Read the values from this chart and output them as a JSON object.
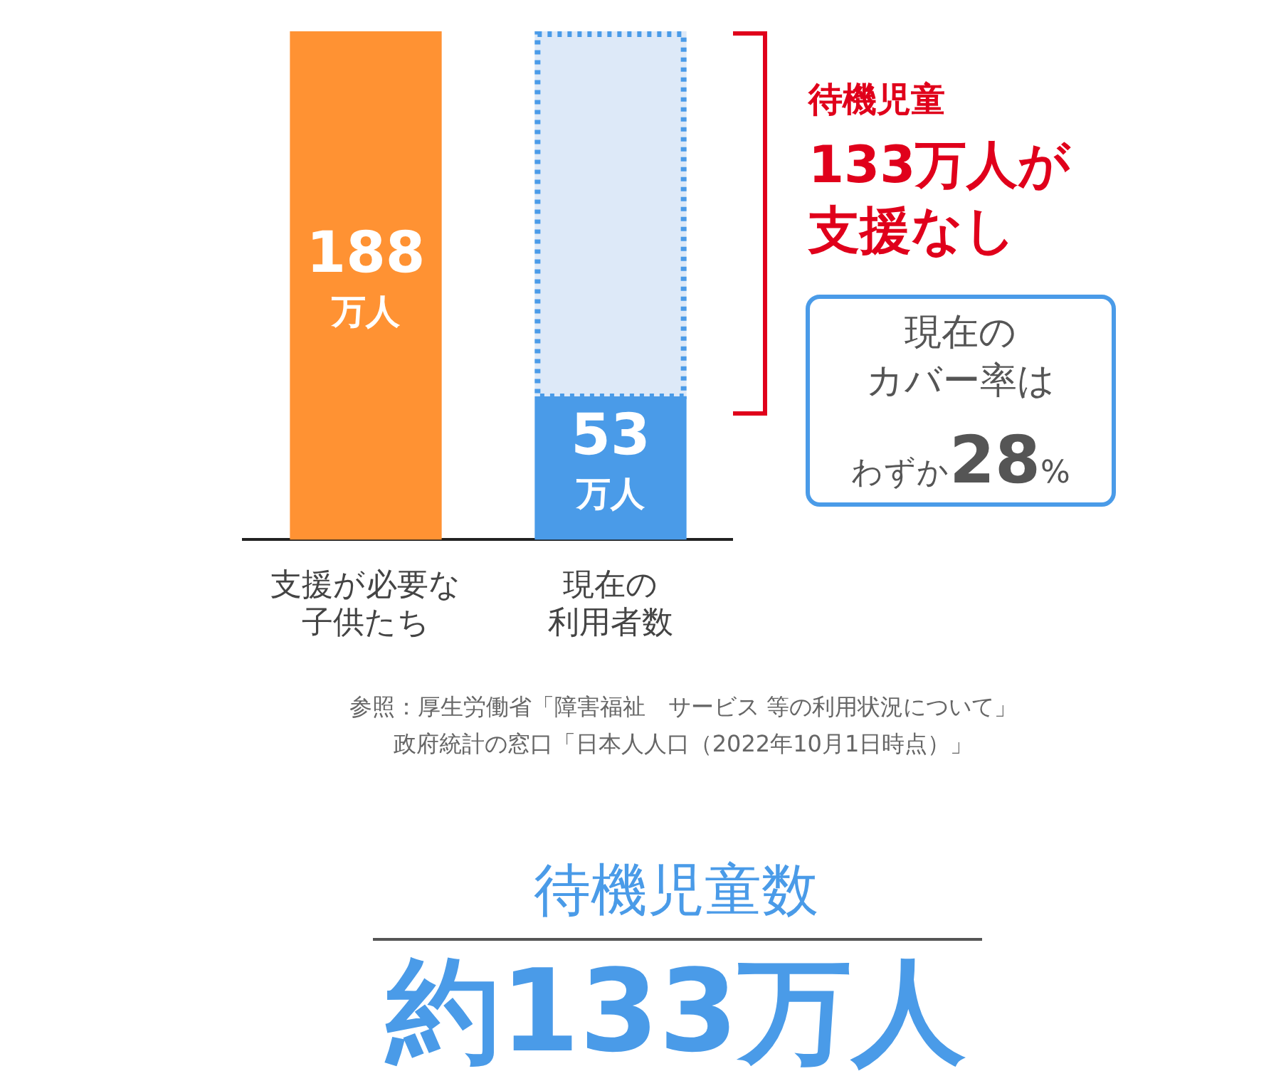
{
  "chart_data": {
    "type": "bar",
    "stacked": true,
    "legend": false,
    "grid": false,
    "tick_labels": "x",
    "categories": [
      "支援が必要な子供たち",
      "現在の利用者数"
    ],
    "series": [
      {
        "colors": [
          "#ff9233",
          "#4a9be8"
        ],
        "values": [
          188,
          53
        ],
        "value_labels": [
          "188万人",
          "53万人"
        ]
      },
      {
        "color": "#dde9f8",
        "values": [
          null,
          135
        ],
        "line_style": "dotted"
      }
    ],
    "ylim": [
      0,
      188
    ],
    "annotations": [
      "待機児童",
      "133万人が",
      "支援なし",
      "現在の",
      "カバー率は",
      "わずか28%",
      "参照：厚生労働省「障害福祉　サービス 等の利用状況について」",
      "政府統計の窓口「日本人人口（2022年10月1日時点）」",
      "待機児童数",
      "約133万人"
    ]
  }
}
